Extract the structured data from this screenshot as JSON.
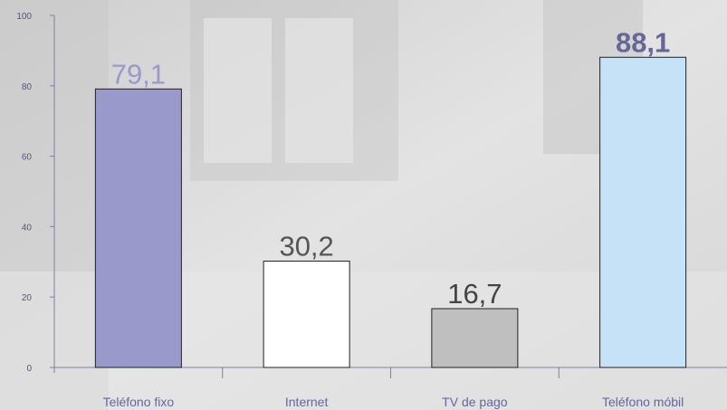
{
  "chart_data": {
    "type": "bar",
    "categories": [
      "Teléfono fixo",
      "Internet",
      "TV de pago",
      "Teléfono móbil"
    ],
    "values": [
      79.1,
      30.2,
      16.7,
      88.1
    ],
    "value_labels": [
      "79,1",
      "30,2",
      "16,7",
      "88,1"
    ],
    "ylim": [
      0,
      100
    ],
    "yticks": [
      0,
      20,
      40,
      60,
      80,
      100
    ],
    "grid": false,
    "bar_colors": [
      "#9999cc",
      "#ffffff",
      "#bfbfbf",
      "#c6e2f7"
    ],
    "label_colors": [
      "#9999cc",
      "#555555",
      "#444444",
      "#666699"
    ],
    "title": "",
    "xlabel": "",
    "ylabel": ""
  }
}
